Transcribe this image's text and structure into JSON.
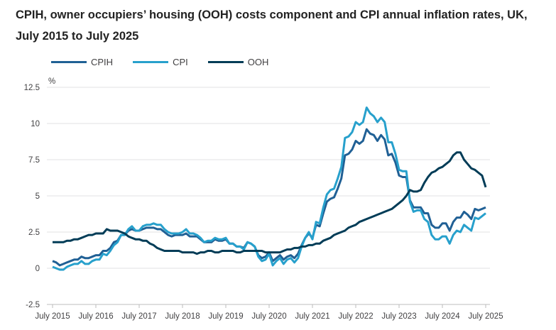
{
  "chart_data": {
    "type": "line",
    "title": "CPIH, owner occupiers’ housing (OOH) costs component and CPI annual inflation rates, UK, July 2015 to July 2025",
    "ylabel": "%",
    "xlabel": "",
    "ylim": [
      -2.5,
      12.5
    ],
    "yticks": [
      "12.5",
      "10",
      "7.5",
      "5",
      "2.5",
      "0",
      "-2.5"
    ],
    "ytick_values": [
      12.5,
      10,
      7.5,
      5,
      2.5,
      0,
      -2.5
    ],
    "xticks": [
      "July 2015",
      "July 2016",
      "July 2017",
      "July 2018",
      "July 2019",
      "July 2020",
      "July 2021",
      "July 2022",
      "July 2023",
      "July 2024",
      "July 2025"
    ],
    "x_start": "July 2015",
    "x_end": "July 2025",
    "x_frequency": "monthly",
    "grid": true,
    "legend_position": "top-left",
    "series": [
      {
        "name": "CPIH",
        "color": "#206095",
        "values": [
          0.5,
          0.4,
          0.2,
          0.3,
          0.4,
          0.5,
          0.6,
          0.6,
          0.8,
          0.7,
          0.7,
          0.8,
          0.9,
          0.9,
          1.2,
          1.2,
          1.4,
          1.8,
          1.9,
          2.3,
          2.3,
          2.6,
          2.7,
          2.6,
          2.6,
          2.7,
          2.8,
          2.8,
          2.8,
          2.7,
          2.7,
          2.5,
          2.3,
          2.2,
          2.3,
          2.3,
          2.3,
          2.4,
          2.2,
          2.2,
          2.2,
          2.0,
          1.8,
          1.8,
          1.8,
          2.0,
          1.9,
          1.9,
          2.0,
          1.7,
          1.7,
          1.5,
          1.5,
          1.4,
          1.8,
          1.7,
          1.5,
          0.9,
          0.7,
          0.8,
          1.1,
          0.5,
          0.7,
          0.9,
          0.6,
          0.8,
          0.9,
          0.7,
          1.0,
          1.6,
          2.1,
          2.4,
          2.1,
          3.0,
          2.9,
          3.8,
          4.6,
          4.8,
          4.9,
          5.5,
          6.2,
          7.8,
          7.9,
          8.2,
          8.8,
          8.6,
          8.8,
          9.6,
          9.3,
          9.2,
          8.8,
          9.2,
          8.9,
          7.8,
          7.9,
          7.3,
          6.4,
          6.3,
          6.3,
          4.7,
          4.2,
          4.2,
          4.2,
          3.8,
          3.8,
          3.0,
          2.8,
          2.8,
          3.1,
          3.1,
          2.6,
          3.2,
          3.5,
          3.5,
          3.9,
          3.7,
          3.4,
          4.1,
          4.0,
          4.1,
          4.2
        ]
      },
      {
        "name": "CPI",
        "color": "#27a0cc",
        "values": [
          0.1,
          0.0,
          -0.1,
          -0.1,
          0.1,
          0.2,
          0.3,
          0.3,
          0.5,
          0.3,
          0.3,
          0.5,
          0.6,
          0.6,
          1.0,
          0.9,
          1.2,
          1.6,
          1.8,
          2.3,
          2.3,
          2.7,
          2.9,
          2.6,
          2.6,
          2.9,
          3.0,
          3.0,
          3.1,
          3.0,
          3.0,
          2.7,
          2.5,
          2.4,
          2.4,
          2.4,
          2.5,
          2.7,
          2.4,
          2.4,
          2.3,
          2.1,
          1.8,
          1.9,
          1.9,
          2.1,
          2.0,
          2.0,
          2.1,
          1.7,
          1.7,
          1.5,
          1.5,
          1.3,
          1.8,
          1.7,
          1.5,
          0.8,
          0.5,
          0.6,
          1.0,
          0.2,
          0.5,
          0.7,
          0.3,
          0.6,
          0.7,
          0.4,
          0.7,
          1.5,
          2.1,
          2.5,
          2.0,
          3.2,
          3.1,
          4.2,
          5.1,
          5.4,
          5.5,
          6.2,
          7.0,
          9.0,
          9.1,
          9.4,
          10.1,
          9.9,
          10.1,
          11.1,
          10.7,
          10.5,
          10.1,
          10.4,
          10.1,
          8.7,
          8.7,
          7.9,
          6.8,
          6.7,
          6.7,
          4.6,
          3.9,
          4.0,
          4.0,
          3.4,
          3.2,
          2.3,
          2.0,
          2.0,
          2.2,
          2.2,
          1.7,
          2.3,
          2.6,
          2.5,
          3.0,
          2.8,
          2.6,
          3.5,
          3.4,
          3.6,
          3.8
        ]
      },
      {
        "name": "OOH",
        "color": "#003c57",
        "values": [
          1.8,
          1.8,
          1.8,
          1.8,
          1.9,
          1.9,
          2.0,
          2.0,
          2.1,
          2.2,
          2.3,
          2.3,
          2.4,
          2.4,
          2.4,
          2.7,
          2.6,
          2.6,
          2.6,
          2.5,
          2.4,
          2.2,
          2.1,
          2.0,
          2.0,
          1.9,
          1.9,
          1.7,
          1.6,
          1.4,
          1.3,
          1.2,
          1.2,
          1.2,
          1.2,
          1.2,
          1.1,
          1.1,
          1.1,
          1.1,
          1.0,
          1.1,
          1.1,
          1.2,
          1.2,
          1.1,
          1.1,
          1.2,
          1.2,
          1.2,
          1.2,
          1.1,
          1.1,
          1.2,
          1.2,
          1.2,
          1.2,
          1.2,
          1.2,
          1.1,
          1.1,
          1.1,
          1.1,
          1.1,
          1.2,
          1.3,
          1.3,
          1.4,
          1.4,
          1.5,
          1.5,
          1.6,
          1.6,
          1.7,
          1.7,
          1.9,
          2.0,
          2.1,
          2.3,
          2.4,
          2.5,
          2.6,
          2.8,
          2.9,
          3.0,
          3.2,
          3.3,
          3.4,
          3.5,
          3.6,
          3.7,
          3.8,
          3.9,
          4.0,
          4.1,
          4.3,
          4.5,
          4.7,
          5.0,
          5.4,
          5.3,
          5.3,
          5.4,
          5.9,
          6.3,
          6.6,
          6.7,
          6.9,
          7.0,
          7.2,
          7.4,
          7.8,
          8.0,
          8.0,
          7.5,
          7.2,
          6.9,
          6.8,
          6.6,
          6.4,
          5.6
        ]
      }
    ]
  }
}
